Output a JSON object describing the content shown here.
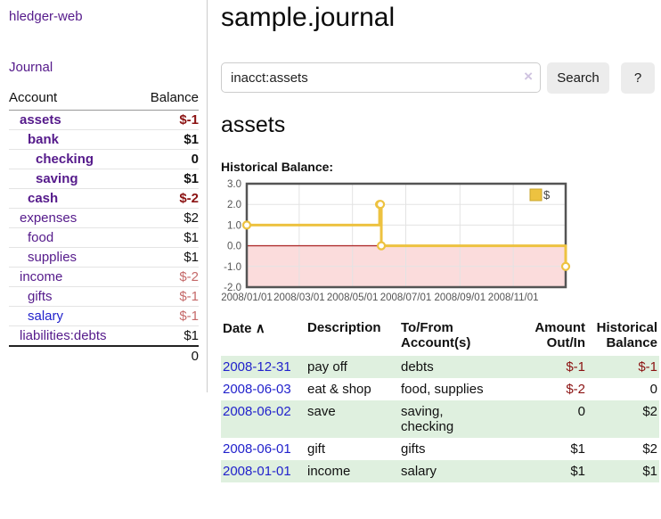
{
  "colors": {
    "link_purple": "#551a8b",
    "link_blue": "#2222cc",
    "negative_strong": "#8b1212",
    "negative_soft": "#c56a6a",
    "stripe_green": "#dff0df",
    "chart_gold": "#edc240",
    "chart_negative_fill": "#fbdcdc",
    "chart_zero_line": "#b03030"
  },
  "sidebar": {
    "brand": "hledger-web",
    "journal_link": "Journal",
    "accounts": {
      "header": {
        "account": "Account",
        "balance": "Balance"
      },
      "rows": [
        {
          "name": "assets",
          "balance": "$-1"
        },
        {
          "name": "bank",
          "balance": "$1"
        },
        {
          "name": "checking",
          "balance": "0"
        },
        {
          "name": "saving",
          "balance": "$1"
        },
        {
          "name": "cash",
          "balance": "$-2"
        },
        {
          "name": "expenses",
          "balance": "$2"
        },
        {
          "name": "food",
          "balance": "$1"
        },
        {
          "name": "supplies",
          "balance": "$1"
        },
        {
          "name": "income",
          "balance": "$-2"
        },
        {
          "name": "gifts",
          "balance": "$-1"
        },
        {
          "name": "salary",
          "balance": "$-1"
        },
        {
          "name": "liabilities:debts",
          "balance": "$1"
        }
      ],
      "total": "0"
    }
  },
  "main": {
    "title": "sample.journal",
    "search": {
      "value": "inacct:assets",
      "clear_icon": "×",
      "button_label": "Search",
      "help_label": "?"
    },
    "heading": "assets",
    "chart_title": "Historical Balance:"
  },
  "chart_data": {
    "type": "line",
    "step": true,
    "title": "Historical Balance:",
    "xlim": [
      "2008-01-01",
      "2008-12-31"
    ],
    "ylim": [
      -2,
      3
    ],
    "yticks": [
      3.0,
      2.0,
      1.0,
      0.0,
      -1.0,
      -2.0
    ],
    "xticks": [
      "2008/01/01",
      "2008/03/01",
      "2008/05/01",
      "2008/07/01",
      "2008/09/01",
      "2008/11/01"
    ],
    "grid": true,
    "legend": {
      "position": "top-right"
    },
    "series": [
      {
        "name": "$",
        "color": "#edc240",
        "points": [
          [
            "2008-01-01",
            1
          ],
          [
            "2008-06-01",
            2
          ],
          [
            "2008-06-02",
            2
          ],
          [
            "2008-06-03",
            0
          ],
          [
            "2008-12-31",
            -1
          ]
        ]
      }
    ],
    "negative_region": {
      "below": 0,
      "fill": "#fbdcdc",
      "line": "#b03030"
    }
  },
  "register": {
    "headers": {
      "date": "Date",
      "description": "Description",
      "accounts": "To/From Account(s)",
      "amount": "Amount Out/In",
      "balance": "Historical Balance"
    },
    "sort_icon": "∧",
    "rows": [
      {
        "date": "2008-12-31",
        "description": "pay off",
        "accounts": "debts",
        "amount": "$-1",
        "balance": "$-1"
      },
      {
        "date": "2008-06-03",
        "description": "eat & shop",
        "accounts": "food, supplies",
        "amount": "$-2",
        "balance": "0"
      },
      {
        "date": "2008-06-02",
        "description": "save",
        "accounts": "saving,\nchecking",
        "amount": "0",
        "balance": "$2"
      },
      {
        "date": "2008-06-01",
        "description": "gift",
        "accounts": "gifts",
        "amount": "$1",
        "balance": "$2"
      },
      {
        "date": "2008-01-01",
        "description": "income",
        "accounts": "salary",
        "amount": "$1",
        "balance": "$1"
      }
    ]
  }
}
